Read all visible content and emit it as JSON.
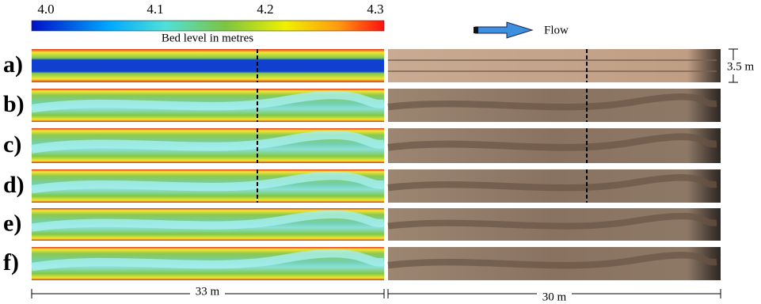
{
  "colorbar": {
    "label": "Bed level in metres",
    "ticks": [
      "4.0",
      "4.1",
      "4.2",
      "4.3"
    ]
  },
  "flow_legend": "Flow",
  "panels": [
    "a)",
    "b)",
    "c)",
    "d)",
    "e)",
    "f)"
  ],
  "scales": {
    "width": "3.5 m",
    "left_length": "33 m",
    "right_length": "30 m"
  }
}
